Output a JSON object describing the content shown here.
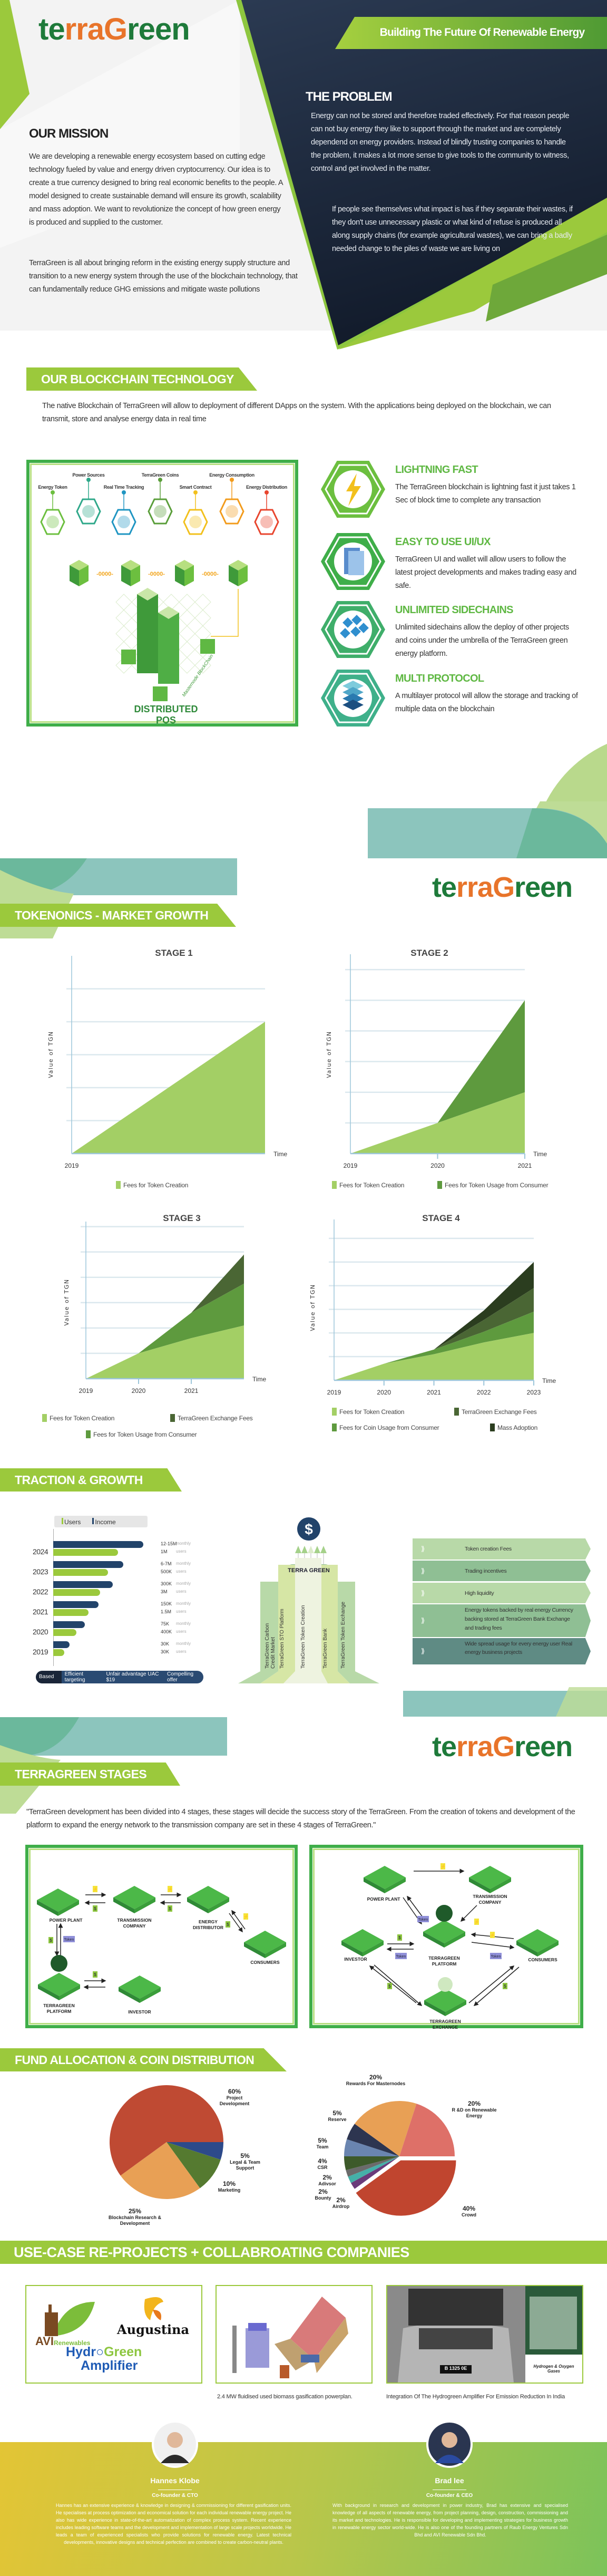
{
  "brand": {
    "logo_parts": [
      "te",
      "rra",
      "G",
      "reen"
    ],
    "slogan": "Building The Future Of Renewable Energy"
  },
  "mission": {
    "title": "OUR MISSION",
    "p1": "We are developing a renewable energy ecosystem based on cutting edge technology fueled by value and energy driven cryptocurrency. Our idea is to create a true currency designed to bring real economic benefits to the people. A model designed to create sustainable demand will ensure its growth, scalability and mass adoption. We want to revolutionize the concept of how green energy is produced and supplied to the customer.",
    "p2": "TerraGreen is all about bringing reform in the existing energy supply structure and transition to a new energy system through the use of the blockchain technology, that can fundamentally reduce GHG emissions and mitigate waste pollutions"
  },
  "problem": {
    "title": "THE PROBLEM",
    "p1": "Energy can not be stored and therefore traded effectively. For that reason people can not buy energy they like to support through the market and are completely dependend on energy providers. Instead of blindly trusting companies to handle the problem, it makes a lot more sense to give tools to the community to witness, control and get involved in the matter.",
    "p2": "If people see themselves what impact is has if they separate their wastes, if they don't use unnecessary plastic or what kind of refuse is produced all along supply chains (for example agricultural wastes), we can bring a badly needed change to the piles of waste we are living on"
  },
  "blockchain": {
    "title": "OUR BLOCKCHAIN TECHNOLOGY",
    "intro": "The native Blockchain of TerraGreen will allow to deployment of different DApps on the system. With the applications being deployed on the blockchain, we can transmit, store and analyse energy data in real time",
    "diagram": {
      "nodes": [
        {
          "label": "Energy Token",
          "color": "#6cbf3f"
        },
        {
          "label": "Power Sources",
          "color": "#2fa88a"
        },
        {
          "label": "Real Time Tracking",
          "color": "#1f95c2"
        },
        {
          "label": "TerraGreen Coins",
          "color": "#5a9e3a"
        },
        {
          "label": "Smart Contract",
          "color": "#f2c01c"
        },
        {
          "label": "Energy Consumption",
          "color": "#f29b1c"
        },
        {
          "label": "Energy Distribution",
          "color": "#e8452e"
        }
      ],
      "chain_link": "-0000-",
      "server_caption": "Masternode BlockChain",
      "caption": "DISTRIBUTED POS"
    },
    "features": [
      {
        "icon": "lightning-icon",
        "title": "LIGHTNING FAST",
        "text": "The TerraGreen blockchain is lightning fast it just takes 1 Sec of block time to complete any transaction"
      },
      {
        "icon": "wallet-ui-icon",
        "title": "EASY TO USE UI/UX",
        "text": "TerraGreen UI and wallet will allow users to follow the latest project developments and makes trading easy and safe."
      },
      {
        "icon": "sidechains-icon",
        "title": "UNLIMITED SIDECHAINS",
        "text": "Unlimited sidechains allow the deploy of other projects and coins under the umbrella of the TerraGreen green energy platform."
      },
      {
        "icon": "layers-icon",
        "title": "MULTI PROTOCOL",
        "text": "A multilayer protocol will allow the storage and tracking of multiple data on the blockchain"
      }
    ]
  },
  "tokenomics": {
    "title": "TOKENONICS - MARKET GROWTH"
  },
  "colors": {
    "lime": "#9bc93c",
    "green": "#3fae49",
    "dark_navy": "#1a2538",
    "teal": "#8cc5bd",
    "light_area": "#a3cf65",
    "medium_area": "#5e9a3e",
    "dark_area": "#4a6634",
    "darkest_area": "#2b3d1f"
  },
  "chart_data": [
    {
      "type": "area",
      "stacked": true,
      "title": "STAGE 1",
      "ylabel": "Value of TGN",
      "xlabel": "Time",
      "categories": [
        "2019",
        ""
      ],
      "ylim": [
        0,
        6
      ],
      "grid": true,
      "series": [
        {
          "name": "Fees for Token Creation",
          "color": "#a3cf65",
          "values": [
            0,
            4
          ]
        }
      ],
      "legend": "bottom"
    },
    {
      "type": "area",
      "stacked": true,
      "title": "STAGE 2",
      "ylabel": "Value of TGN",
      "xlabel": "Time",
      "categories": [
        "2019",
        "2020",
        "2021"
      ],
      "ylim": [
        0,
        6.5
      ],
      "grid": true,
      "series": [
        {
          "name": "Fees for Token Creation",
          "color": "#a3cf65",
          "values": [
            0,
            1,
            2
          ]
        },
        {
          "name": "Fees for Token Usage from Consumer",
          "color": "#5e9a3e",
          "values": [
            0,
            0,
            3
          ]
        }
      ],
      "legend": "bottom"
    },
    {
      "type": "area",
      "stacked": true,
      "title": "STAGE 3",
      "ylabel": "Value of TGN",
      "xlabel": "Time",
      "categories": [
        "2019",
        "2020",
        "2021",
        ""
      ],
      "ylim": [
        0,
        6.2
      ],
      "grid": true,
      "series": [
        {
          "name": "Fees for Token Creation",
          "color": "#a3cf65",
          "values": [
            0,
            1,
            1.6,
            2.1
          ]
        },
        {
          "name": "Fees for Token Usage from Consumer",
          "color": "#5e9a3e",
          "values": [
            0,
            0,
            1,
            1.65
          ]
        },
        {
          "name": "TerraGreen Exchange Fees",
          "color": "#4a6634",
          "values": [
            0,
            0,
            0,
            1.15
          ]
        }
      ],
      "legend": "bottom"
    },
    {
      "type": "area",
      "stacked": true,
      "title": "STAGE 4",
      "ylabel": "Value of TGN",
      "xlabel": "Time",
      "categories": [
        "2019",
        "2020",
        "2021",
        "2022",
        "2023"
      ],
      "ylim": [
        0,
        6.8
      ],
      "grid": true,
      "series": [
        {
          "name": "Fees for Token Creation",
          "color": "#a3cf65",
          "values": [
            0,
            0.7,
            1.1,
            1.6,
            2
          ]
        },
        {
          "name": "Fees for Coin Usage from Consumer",
          "color": "#5e9a3e",
          "values": [
            0,
            0,
            0.2,
            0.45,
            0.9
          ]
        },
        {
          "name": "TerraGreen Exchange Fees",
          "color": "#4a6634",
          "values": [
            0,
            0,
            0,
            0.5,
            1
          ]
        },
        {
          "name": "Mass Adoption",
          "color": "#2b3d1f",
          "values": [
            0,
            0,
            0,
            0.4,
            1.1
          ]
        }
      ],
      "legend": "bottom"
    },
    {
      "type": "bar",
      "orientation": "horizontal",
      "categories": [
        "2024",
        "2023",
        "2022",
        "2021",
        "2020",
        "2019"
      ],
      "legend": [
        "Users",
        "Income"
      ],
      "series": [
        {
          "name": "Income",
          "color": "#22436a",
          "labels": [
            "12-15M",
            "6-7M",
            "300K",
            "150K",
            "75K",
            "30K"
          ],
          "unit": "monthly",
          "bar_level_pct": [
            100,
            78,
            66,
            50,
            35,
            18
          ]
        },
        {
          "name": "Users",
          "color": "#9bc93c",
          "labels": [
            "1M",
            "500K",
            "3M",
            "1.5M",
            "400K",
            "30K"
          ],
          "unit": "users",
          "bar_level_pct": [
            72,
            61,
            52,
            39,
            26,
            12
          ]
        }
      ],
      "footer": {
        "prefix": "Based on",
        "items": [
          "Efficient targeting",
          "Unfair advantage UAC $19",
          "Compelling offer"
        ]
      }
    }
  ],
  "traction": {
    "title": "TRACTION & GROWTH",
    "center_icon": "dollar-icon",
    "center_label": "TERRA GREEN",
    "pillars": [
      "TerraGreen Carbon Credit Market",
      "TerraGreen STO Platform",
      "TerraGreen Token Creation",
      "TerraGreen Bank",
      "TerraGreen Token Exchange"
    ],
    "revenue": [
      "Token creation Fees",
      "Trading incentives",
      "High liquidity",
      "Energy tokens backed by real energy Currency backing stored at TerraGreen Bank Exchange and trading fees",
      "Wide spread usage for every energy user Real energy business projects"
    ]
  },
  "stages": {
    "title": "TERRAGREEN STAGES",
    "intro": "\"TerraGreen development has been divided into 4 stages, these stages will decide the success story of the TerraGreen. From the creation of tokens and development of the platform to expand the energy network to the transmission company are set in these 4 stages of TerraGreen.\"",
    "badges": {
      "energy": "⚡",
      "money": "$",
      "token": "Token"
    },
    "left": [
      "POWER PLANT",
      "TRANSMISSION COMPANY",
      "ENERGY DISTRIBUTOR",
      "CONSUMERS",
      "TERRAGREEN PLATFORM",
      "INVESTOR"
    ],
    "right": [
      "POWER PLANT",
      "TRANSMISSION COMPANY",
      "TERRAGREEN PLATFORM",
      "INVESTOR",
      "CONSUMERS",
      "TERRAGREEN EXCHANGE"
    ]
  },
  "fund": {
    "title": "FUND ALLOCATION & COIN DISTRIBUTION",
    "allocation": [
      {
        "pct": "5%",
        "label": "Legal & Team Support",
        "value": 5,
        "color": "#2d4a8a"
      },
      {
        "pct": "10%",
        "label": "Marketing",
        "value": 10,
        "color": "#557a30"
      },
      {
        "pct": "25%",
        "label": "Blockchain Research & Development",
        "value": 25,
        "color": "#e8a055"
      },
      {
        "pct": "60%",
        "label": "Project Development",
        "value": 60,
        "color": "#bf4a33"
      }
    ],
    "distribution": [
      {
        "pct": "40%",
        "label": "Crowd",
        "value": 40,
        "color": "#c0452f"
      },
      {
        "pct": "2%",
        "label": "Airdrop",
        "value": 2,
        "color": "#6a3b7a"
      },
      {
        "pct": "2%",
        "label": "Bounty",
        "value": 2,
        "color": "#45b0a8"
      },
      {
        "pct": "2%",
        "label": "Adivsor",
        "value": 2,
        "color": "#6b6b6b"
      },
      {
        "pct": "4%",
        "label": "CSR",
        "value": 4,
        "color": "#3d5a2a"
      },
      {
        "pct": "5%",
        "label": "Team",
        "value": 5,
        "color": "#6a85b0"
      },
      {
        "pct": "5%",
        "label": "Reserve",
        "value": 5,
        "color": "#2d3550"
      },
      {
        "pct": "20%",
        "label": "Rewards For Masternodes",
        "value": 20,
        "color": "#e8a055"
      },
      {
        "pct": "20%",
        "label": "R &D on Renewable Energy",
        "value": 20,
        "color": "#de7068"
      }
    ]
  },
  "usecase": {
    "title": "USE-CASE RE-PROJECTS + COLLABROATING COMPANIES",
    "logos": [
      "AVI",
      "Renewables",
      "Augustina",
      "Hydr",
      "Green",
      "Amplifier"
    ],
    "caption2": "2.4 MW fluidised used biomass gasification powerplan.",
    "caption3": "Integration Of The Hydrogreen Amplifier For Emission Reduction In India",
    "photo_label": "Hydrogen & Oxygen Gases",
    "plate": "B 1325 0E"
  },
  "team": [
    {
      "name": "Hannes Klobe",
      "role": "Co-founder & CTO",
      "bio": "Hannes has an extensive experience & knowledge in designing & commissioning for different gasification units. He specialises at process optimization and economical solution for each individual renewable energy project. He also has wide experience in state-of-the-art automatization of complex process system. Recent experience includes leading software teams and the development and implementation of large scale projects worldwide. He leads a team of experienced specialists who provide solutions for renewable energy. Latest technical developments, innovative designs and technical perfection are combined to create carbon-neutral plants."
    },
    {
      "name": "Brad lee",
      "role": "Co-founder & CEO",
      "bio": "With background in research and development in power industry, Brad has extensive and specialised knowledge of all aspects of renewable energy, from project planning, design, construction, commissioning and its market and technologies. He is responsible for developing and implementing strategies for business growth in renewable energy sector world-wide. He is also one of the founding partners of Raub Energy Ventures Sdn Bhd and AVI Renewable Sdn Bhd."
    }
  ]
}
